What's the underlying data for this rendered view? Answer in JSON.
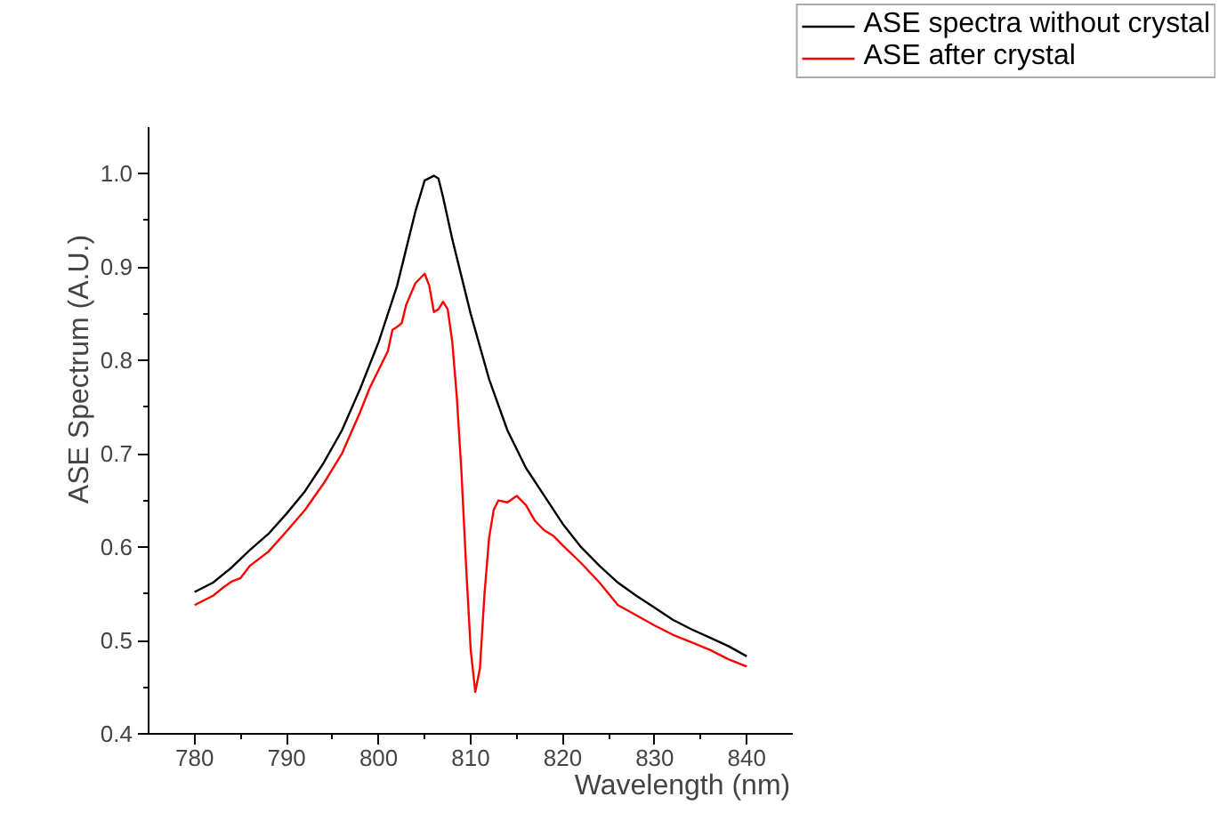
{
  "chart_data": {
    "type": "line",
    "xlabel": "Wavelength (nm)",
    "ylabel": "ASE Spectrum (A.U.)",
    "xlim": [
      775,
      845
    ],
    "ylim": [
      0.4,
      1.05
    ],
    "xticks": [
      780,
      {
        "value": 785,
        "label": null
      },
      790,
      {
        "value": 795,
        "label": null
      },
      800,
      {
        "value": 805,
        "label": null
      },
      810,
      {
        "value": 815,
        "label": null
      },
      820,
      {
        "value": 825,
        "label": null
      },
      830,
      {
        "value": 835,
        "label": null
      },
      840
    ],
    "yticks": [
      0.4,
      {
        "value": 0.45,
        "label": null
      },
      0.5,
      {
        "value": 0.55,
        "label": null
      },
      0.6,
      {
        "value": 0.65,
        "label": null
      },
      0.7,
      {
        "value": 0.75,
        "label": null
      },
      0.8,
      {
        "value": 0.85,
        "label": null
      },
      0.9,
      {
        "value": 0.95,
        "label": null
      },
      {
        "value": 1.0,
        "label": "1.0"
      }
    ],
    "grid": false,
    "legend": "top right",
    "marker": "none",
    "line_style": "solid",
    "series": [
      {
        "name": "ASE spectra without crystal",
        "color": "#000000",
        "x": [
          780,
          782,
          784,
          786,
          788,
          790,
          792,
          794,
          796,
          798,
          800,
          802,
          803,
          804,
          805,
          806,
          806.5,
          807,
          808,
          810,
          812,
          814,
          816,
          818,
          820,
          822,
          824,
          826,
          828,
          830,
          832,
          834,
          836,
          838,
          840
        ],
        "values": [
          0.552,
          0.562,
          0.578,
          0.597,
          0.614,
          0.636,
          0.66,
          0.69,
          0.725,
          0.77,
          0.82,
          0.88,
          0.92,
          0.96,
          0.993,
          0.998,
          0.995,
          0.975,
          0.93,
          0.85,
          0.78,
          0.725,
          0.685,
          0.655,
          0.625,
          0.6,
          0.58,
          0.562,
          0.548,
          0.535,
          0.522,
          0.512,
          0.503,
          0.494,
          0.483
        ]
      },
      {
        "name": "ASE after crystal",
        "color": "#ff0000",
        "x": [
          780,
          782,
          783,
          784,
          785,
          786,
          788,
          790,
          792,
          794,
          796,
          798,
          799,
          800,
          801,
          801.5,
          802,
          802.5,
          803,
          804,
          805,
          805.5,
          806,
          806.5,
          807,
          807.5,
          808,
          808.5,
          809,
          809.5,
          810,
          810.5,
          811,
          811.5,
          812,
          812.5,
          813,
          814,
          815,
          816,
          817,
          818,
          819,
          820,
          822,
          824,
          826,
          828,
          830,
          832,
          834,
          836,
          838,
          840
        ],
        "values": [
          0.538,
          0.548,
          0.556,
          0.563,
          0.567,
          0.58,
          0.595,
          0.617,
          0.64,
          0.668,
          0.7,
          0.745,
          0.77,
          0.79,
          0.81,
          0.833,
          0.836,
          0.84,
          0.86,
          0.883,
          0.893,
          0.88,
          0.852,
          0.855,
          0.863,
          0.855,
          0.82,
          0.76,
          0.68,
          0.58,
          0.49,
          0.445,
          0.47,
          0.55,
          0.61,
          0.64,
          0.65,
          0.648,
          0.655,
          0.645,
          0.628,
          0.618,
          0.612,
          0.602,
          0.583,
          0.562,
          0.538,
          0.527,
          0.516,
          0.506,
          0.498,
          0.49,
          0.48,
          0.472
        ]
      }
    ]
  }
}
